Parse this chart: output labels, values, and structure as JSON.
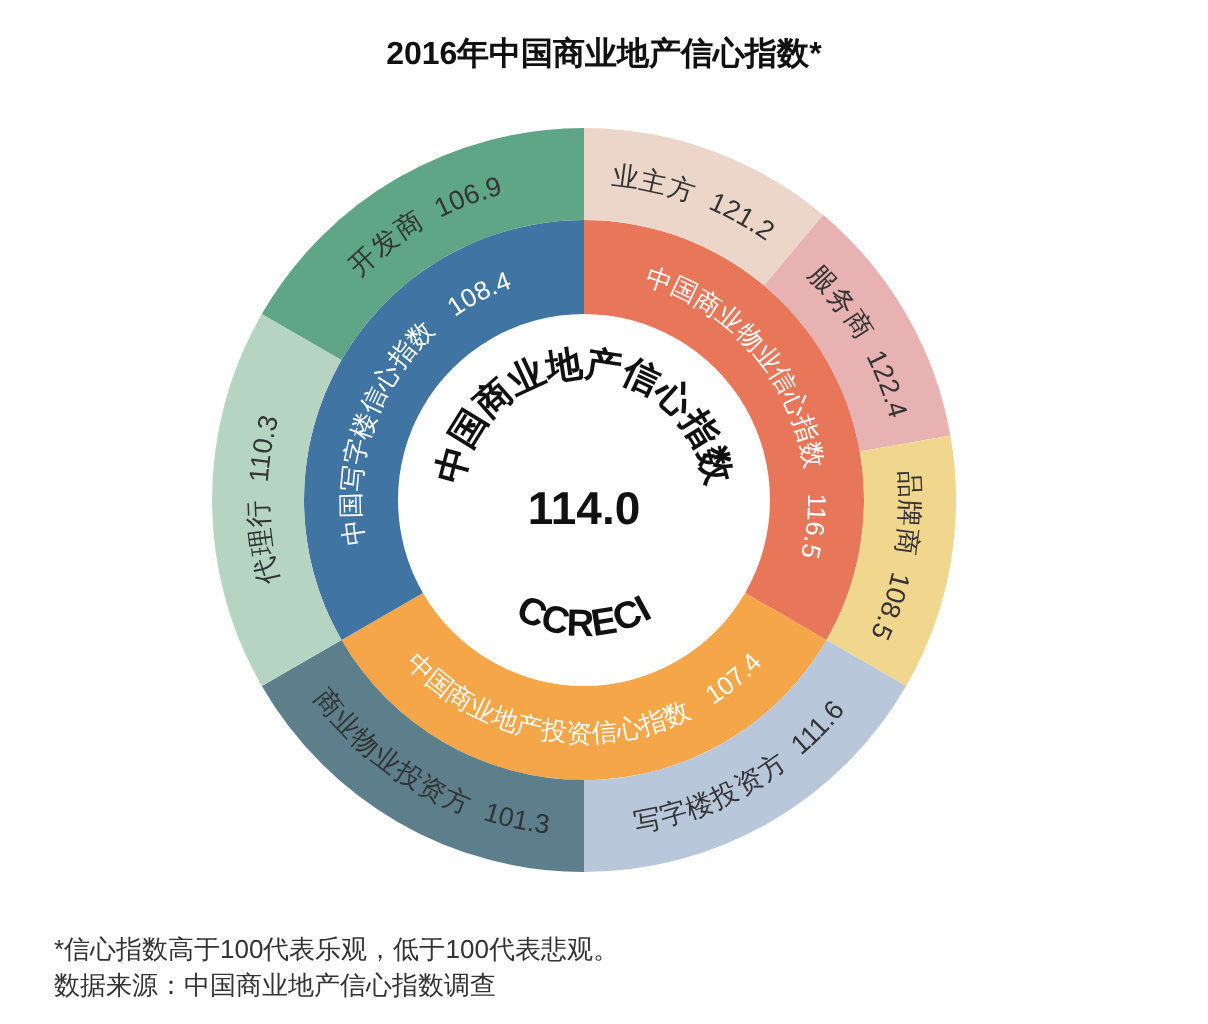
{
  "chart_data": {
    "type": "other",
    "title": "2016年中国商业地产信心指数*",
    "categories": [
      "中国商业物业信心指数",
      "中国商业地产投资信心指数",
      "中国写字楼信心指数"
    ],
    "values": [
      116.5,
      107.4,
      108.4
    ],
    "colors": [
      "#e8775a",
      "#f5a649",
      "#3f74a3"
    ],
    "series": [
      {
        "name": "业主方",
        "color": "#ecd6c9",
        "values": [
          121.2,
          null,
          null
        ]
      },
      {
        "name": "服务商",
        "color": "#e8b2b2",
        "values": [
          122.4,
          null,
          null
        ]
      },
      {
        "name": "品牌商",
        "color": "#f1d78e",
        "values": [
          108.5,
          null,
          null
        ]
      },
      {
        "name": "写字楼投资方",
        "color": "#b9c7da",
        "values": [
          null,
          111.6,
          null
        ]
      },
      {
        "name": "商业物业投资方",
        "color": "#5d7f8b",
        "values": [
          null,
          101.3,
          null
        ]
      },
      {
        "name": "代理行",
        "color": "#b5d5c2",
        "values": [
          null,
          null,
          110.3
        ]
      },
      {
        "name": "开发商",
        "color": "#5ea686",
        "values": [
          null,
          null,
          106.9
        ]
      }
    ],
    "data_labels": true,
    "annotations": [
      "中国商业地产信心指数",
      "114.0",
      "CCRECI",
      "*信心指数高于100代表乐观，低于100代表悲观。",
      "数据来源：中国商业地产信心指数调查"
    ]
  }
}
